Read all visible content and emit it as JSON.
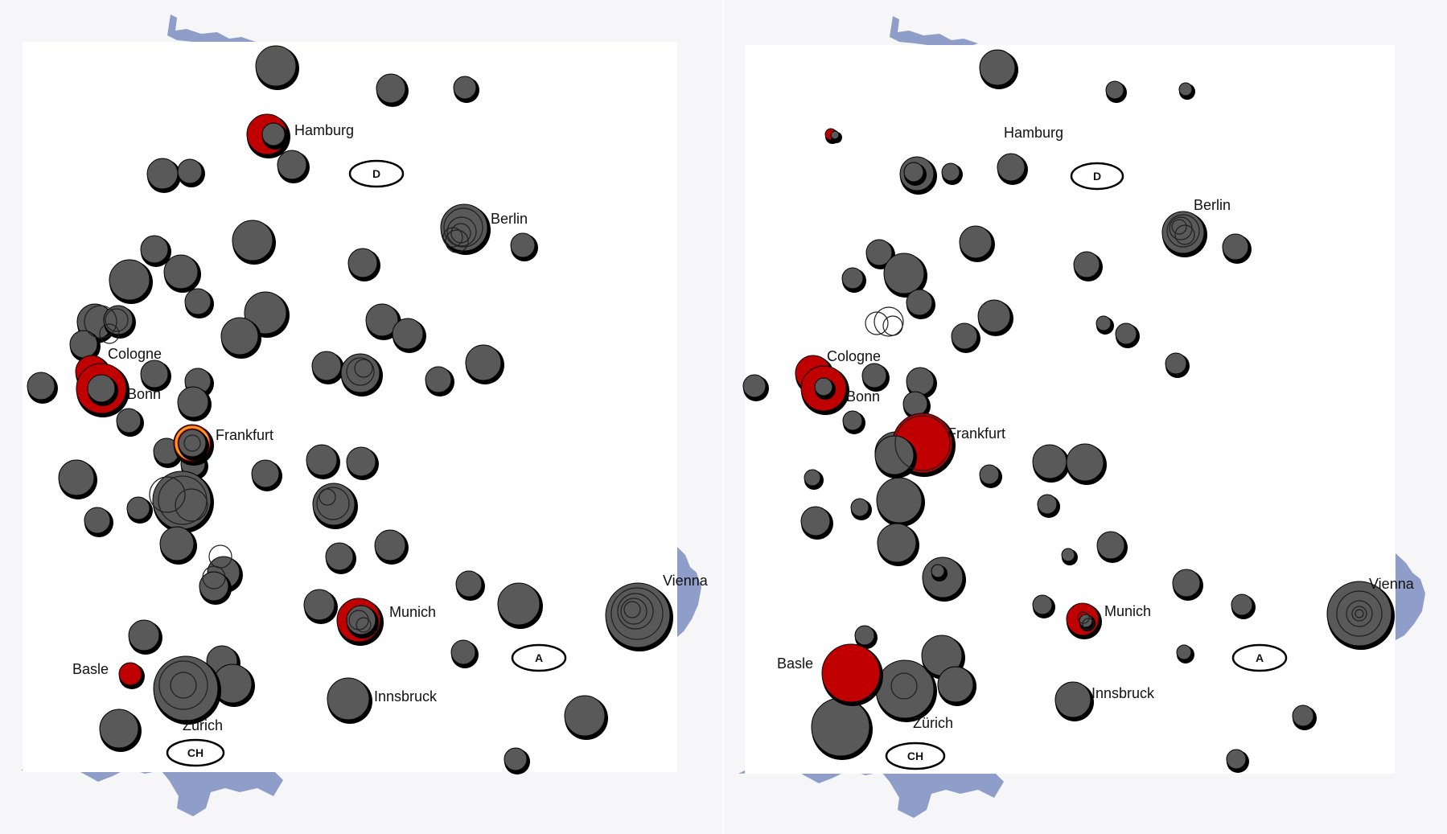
{
  "colors": {
    "terrain": "#8e9ec8",
    "map_area": "#ffffff",
    "bubble": "#595959",
    "bubble_shadow": "#000000",
    "highlight": "#c00000",
    "accent_ring": "#f0a020"
  },
  "panels": [
    {
      "name": "left",
      "cities": [
        "Hamburg",
        "Berlin",
        "Cologne",
        "Bonn",
        "Frankfurt",
        "Munich",
        "Vienna",
        "Basle",
        "Innsbruck",
        "Zürich"
      ],
      "countries": [
        "D",
        "A",
        "CH"
      ]
    },
    {
      "name": "right",
      "cities": [
        "Hamburg",
        "Berlin",
        "Cologne",
        "Bonn",
        "Frankfurt",
        "Munich",
        "Vienna",
        "Basle",
        "Innsbruck",
        "Zürich"
      ],
      "countries": [
        "D",
        "A",
        "CH"
      ]
    }
  ]
}
